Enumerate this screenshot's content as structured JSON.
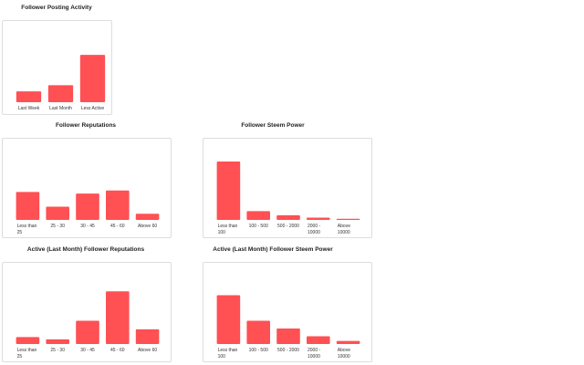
{
  "bar_color": "#ff5053",
  "chart_data": [
    {
      "type": "bar",
      "title": "Follower Posting Activity",
      "categories": [
        [
          "Last Week"
        ],
        [
          "Last Month"
        ],
        [
          "Less Active"
        ]
      ],
      "values": [
        23,
        36,
        100
      ],
      "ylim": [
        0,
        110
      ],
      "xlabel": "",
      "ylabel": "",
      "grid": false
    },
    {
      "type": "bar",
      "title": "Follower Reputations",
      "categories": [
        [
          "Less than",
          "25"
        ],
        [
          "25 - 30"
        ],
        [
          "30 - 45"
        ],
        [
          "45 - 60"
        ],
        [
          "Above 60"
        ]
      ],
      "values": [
        36,
        17,
        34,
        38,
        8
      ],
      "ylim": [
        0,
        100
      ],
      "xlabel": "",
      "ylabel": "",
      "grid": false
    },
    {
      "type": "bar",
      "title": "Follower Steem Power",
      "categories": [
        [
          "Less than",
          "100"
        ],
        [
          "100 - 500"
        ],
        [
          "500 - 2000"
        ],
        [
          "2000 -",
          "10000"
        ],
        [
          "Above",
          "10000"
        ]
      ],
      "values": [
        100,
        15,
        8,
        4,
        2
      ],
      "ylim": [
        0,
        100
      ],
      "xlabel": "",
      "ylabel": "",
      "grid": false
    },
    {
      "type": "bar",
      "title": "Active (Last Month) Follower Reputations",
      "categories": [
        [
          "Less than",
          "25"
        ],
        [
          "25 - 30"
        ],
        [
          "30 - 45"
        ],
        [
          "45 - 60"
        ],
        [
          "Above 60"
        ]
      ],
      "values": [
        9,
        6,
        30,
        68,
        19
      ],
      "ylim": [
        0,
        100
      ],
      "xlabel": "",
      "ylabel": "",
      "grid": false
    },
    {
      "type": "bar",
      "title": "Active (Last Month) Follower Steem Power",
      "categories": [
        [
          "Less than",
          "100"
        ],
        [
          "100 - 500"
        ],
        [
          "500 - 2000"
        ],
        [
          "2000 -",
          "10000"
        ],
        [
          "Above",
          "10000"
        ]
      ],
      "values": [
        63,
        30,
        20,
        10,
        4
      ],
      "ylim": [
        0,
        100
      ],
      "xlabel": "",
      "ylabel": "",
      "grid": false
    }
  ]
}
